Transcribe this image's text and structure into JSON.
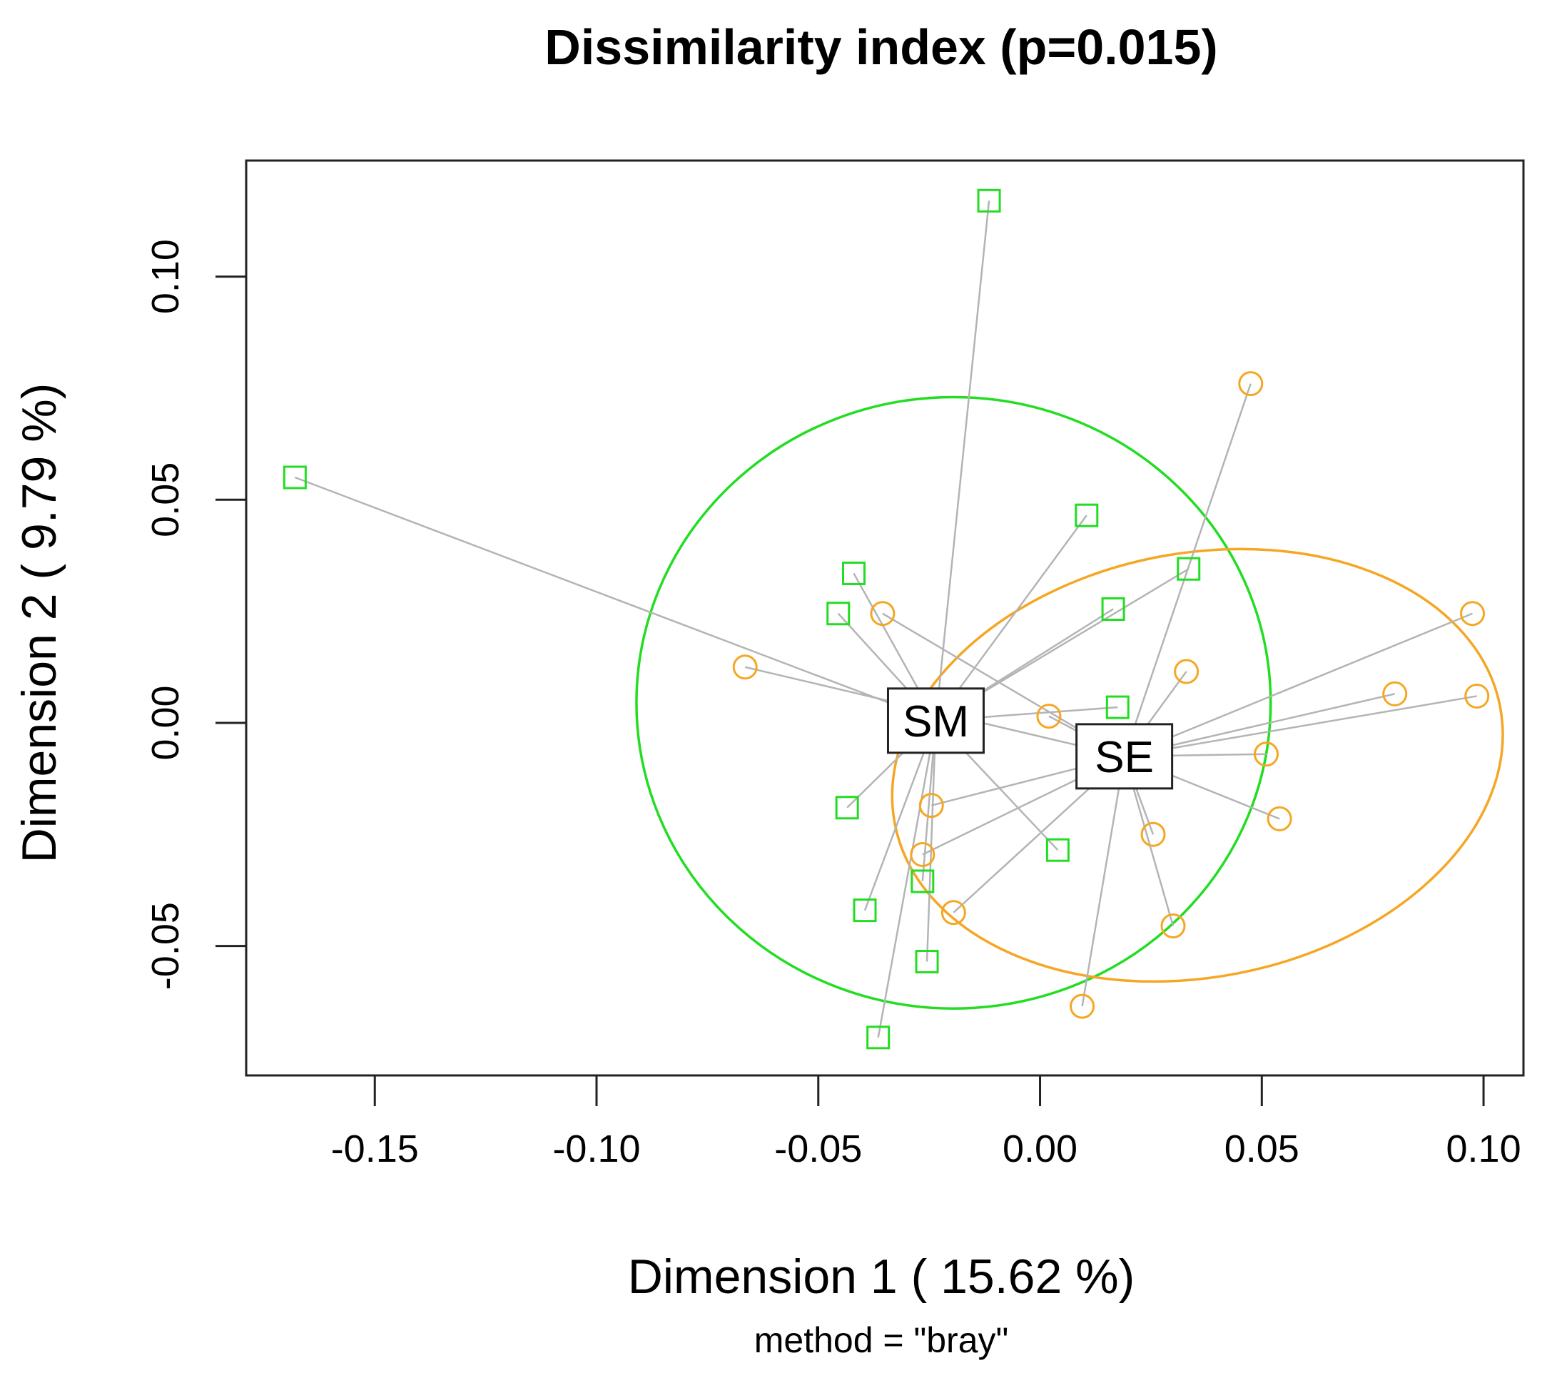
{
  "chart_data": {
    "type": "scatter",
    "title": "Dissimilarity index (p=0.015)",
    "xlabel": "Dimension 1 ( 15.62 %)",
    "ylabel": "Dimension 2 ( 9.79 %)",
    "subtitle": "method = \"bray\"",
    "xlim": [
      -0.179,
      0.109
    ],
    "ylim": [
      -0.079,
      0.126
    ],
    "xticks": [
      -0.15,
      -0.1,
      -0.05,
      0.0,
      0.05,
      0.1
    ],
    "xtick_labels": [
      "-0.15",
      "-0.10",
      "-0.05",
      "0.00",
      "0.05",
      "0.10"
    ],
    "yticks": [
      -0.05,
      0.0,
      0.05,
      0.1
    ],
    "ytick_labels": [
      "-0.05",
      "0.00",
      "0.05",
      "0.10"
    ],
    "grid": false,
    "colors": {
      "SM": "#22dd22",
      "SE": "#f5a623",
      "spider": "#b4b4b4",
      "axis": "#222222"
    },
    "groups": [
      {
        "name": "SM",
        "label": "SM",
        "marker": "square",
        "color": "#22dd22",
        "centroid": [
          -0.0235,
          0.0005
        ],
        "ellipse": {
          "cx": -0.0195,
          "cy": 0.0045,
          "rx": 0.0715,
          "ry": 0.0685,
          "angle_deg": 0
        },
        "points": [
          [
            -0.168,
            0.055
          ],
          [
            -0.0115,
            0.117
          ],
          [
            0.0105,
            0.0465
          ],
          [
            0.0335,
            0.0345
          ],
          [
            -0.042,
            0.0335
          ],
          [
            -0.0455,
            0.0245
          ],
          [
            0.0165,
            0.0255
          ],
          [
            0.0175,
            0.0035
          ],
          [
            -0.0435,
            -0.019
          ],
          [
            0.004,
            -0.0285
          ],
          [
            -0.0265,
            -0.0355
          ],
          [
            -0.0395,
            -0.042
          ],
          [
            -0.0255,
            -0.0535
          ],
          [
            -0.0365,
            -0.0705
          ]
        ]
      },
      {
        "name": "SE",
        "label": "SE",
        "marker": "circle",
        "color": "#f5a623",
        "centroid": [
          0.019,
          -0.0075
        ],
        "ellipse": {
          "cx": 0.0355,
          "cy": -0.0095,
          "rx": 0.0695,
          "ry": 0.0475,
          "angle_deg": 11
        },
        "points": [
          [
            -0.0665,
            0.0125
          ],
          [
            -0.0355,
            0.0245
          ],
          [
            0.002,
            0.0015
          ],
          [
            0.0475,
            0.076
          ],
          [
            0.033,
            0.0115
          ],
          [
            0.08,
            0.0065
          ],
          [
            0.0975,
            0.0245
          ],
          [
            0.0985,
            0.006
          ],
          [
            0.051,
            -0.007
          ],
          [
            0.054,
            -0.0215
          ],
          [
            0.0255,
            -0.025
          ],
          [
            0.03,
            -0.0455
          ],
          [
            0.0095,
            -0.0635
          ],
          [
            -0.0245,
            -0.0185
          ],
          [
            -0.0265,
            -0.0295
          ],
          [
            -0.0195,
            -0.0425
          ]
        ]
      }
    ]
  }
}
